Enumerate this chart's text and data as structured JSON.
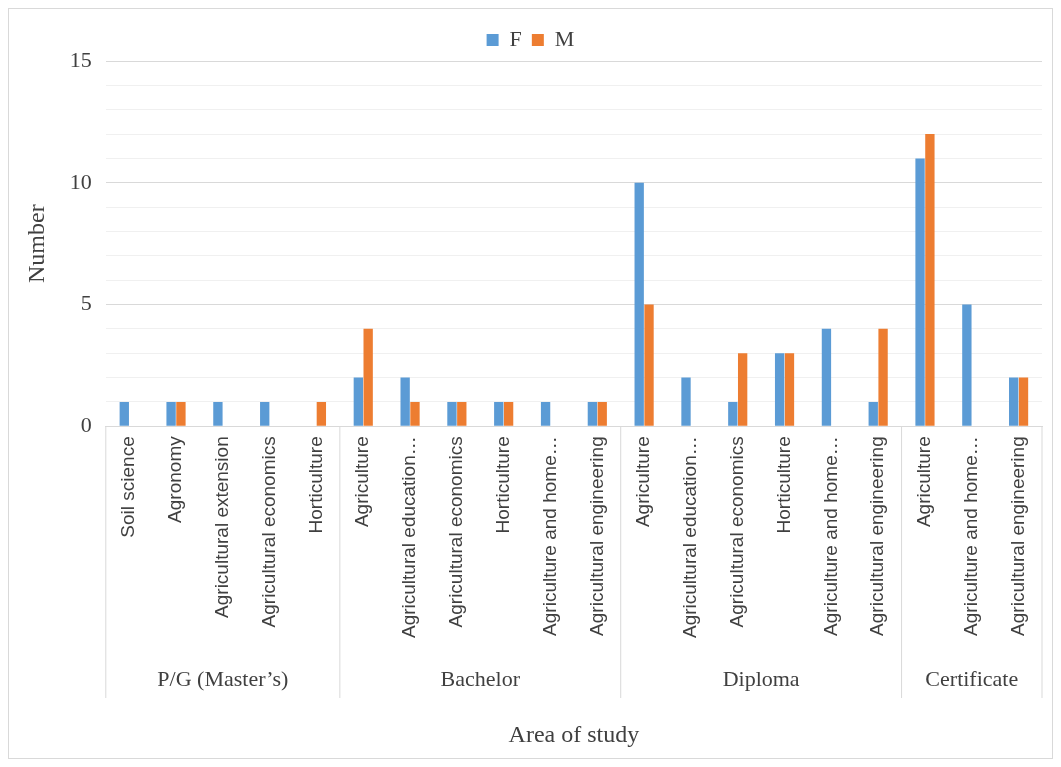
{
  "chart_data": {
    "type": "bar",
    "xlabel": "Area of study",
    "ylabel": "Number",
    "categories": [
      "Soil science",
      "Agronomy",
      "Agricultural extension",
      "Agricultural economics",
      "Horticulture",
      "Agriculture",
      "Agricultural education…",
      "Agricultural economics",
      "Horticulture",
      "Agriculture and home…",
      "Agricultural engineering",
      "Agriculture",
      "Agricultural education…",
      "Agricultural economics",
      "Horticulture",
      "Agriculture and home…",
      "Agricultural engineering",
      "Agriculture",
      "Agriculture and home…",
      "Agricultural engineering"
    ],
    "series": [
      {
        "name": "F",
        "color": "#5b9bd5",
        "values": [
          1,
          1,
          1,
          1,
          0,
          2,
          2,
          1,
          1,
          1,
          1,
          10,
          2,
          1,
          3,
          4,
          1,
          11,
          5,
          2
        ]
      },
      {
        "name": "M",
        "color": "#ed7d31",
        "values": [
          0,
          1,
          0,
          0,
          1,
          4,
          1,
          1,
          1,
          0,
          1,
          5,
          0,
          3,
          3,
          0,
          4,
          12,
          0,
          2
        ]
      }
    ],
    "ylim": [
      0,
      15
    ],
    "yticks": [
      0,
      {
        "value": 1,
        "label": null
      },
      {
        "value": 2,
        "label": null
      },
      {
        "value": 3,
        "label": null
      },
      {
        "value": 4,
        "label": null
      },
      5,
      {
        "value": 6,
        "label": null
      },
      {
        "value": 7,
        "label": null
      },
      {
        "value": 8,
        "label": null
      },
      {
        "value": 9,
        "label": null
      },
      10,
      {
        "value": 11,
        "label": null
      },
      {
        "value": 12,
        "label": null
      },
      {
        "value": 13,
        "label": null
      },
      {
        "value": 14,
        "label": null
      },
      15
    ],
    "grid": "y",
    "legend": "top",
    "annotations": [
      "P/G (Master’s)",
      "Bachelor",
      "Diploma",
      "Certificate"
    ]
  }
}
